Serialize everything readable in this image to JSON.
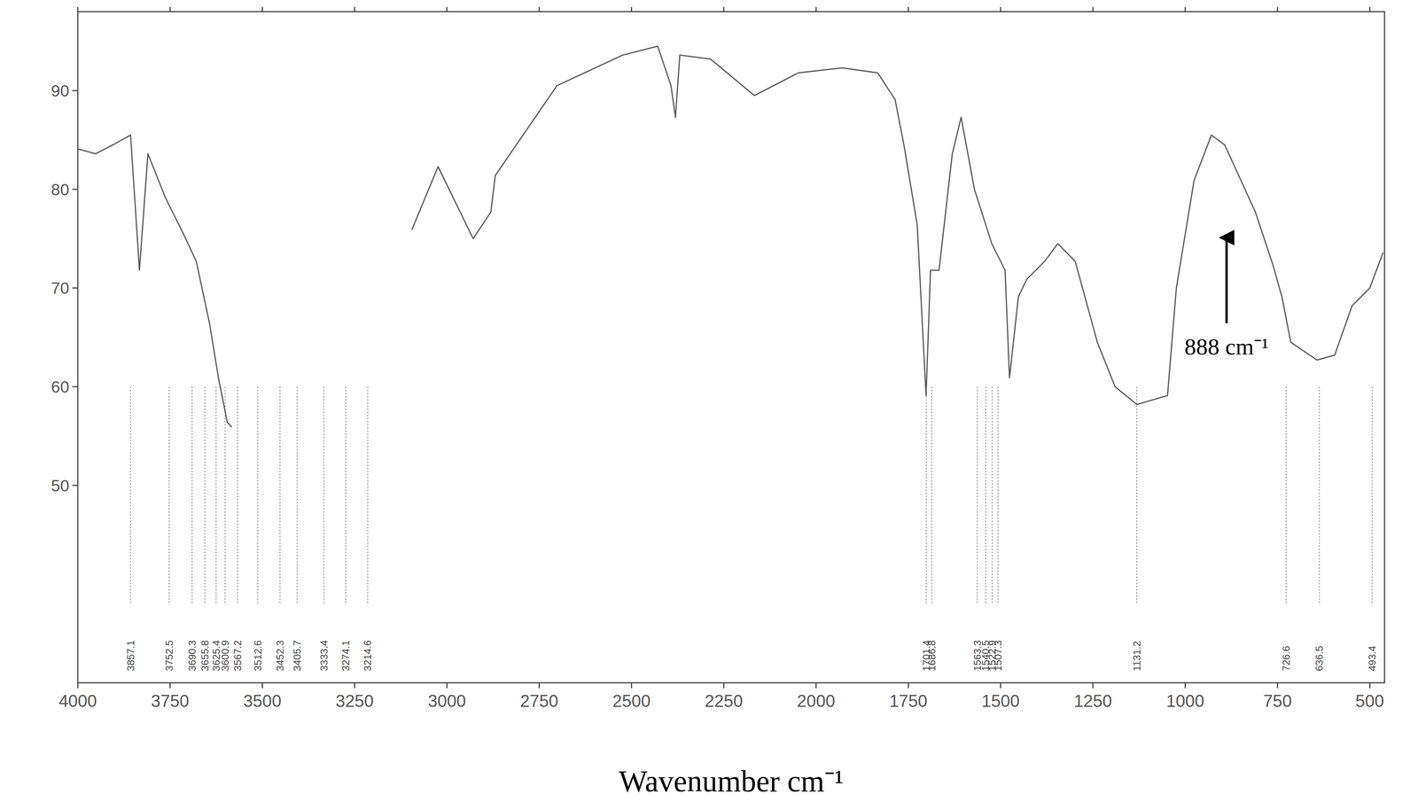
{
  "chart_data": {
    "type": "line",
    "x_label": "Wavenumber cm⁻¹",
    "x": [
      4000,
      3952,
      3905,
      3857,
      3833,
      3810,
      3762,
      3714,
      3679,
      3643,
      3619,
      3595,
      3583,
      3400,
      3095,
      3024,
      2929,
      2881,
      2869,
      2702,
      2524,
      2429,
      2393,
      2381,
      2369,
      2286,
      2167,
      2048,
      1929,
      1833,
      1786,
      1762,
      1726,
      1702,
      1690,
      1667,
      1631,
      1607,
      1571,
      1524,
      1488,
      1476,
      1452,
      1429,
      1381,
      1345,
      1298,
      1238,
      1190,
      1131,
      1048,
      1024,
      976,
      929,
      893,
      810,
      762,
      738,
      714,
      643,
      595,
      548,
      500,
      464
    ],
    "values": [
      84.1,
      83.6,
      84.5,
      85.5,
      71.8,
      83.6,
      79.1,
      75.5,
      72.7,
      66.4,
      60.9,
      56.4,
      55.9,
      null,
      75.9,
      82.3,
      75,
      77.7,
      81.4,
      90.5,
      93.6,
      94.5,
      90.5,
      87.3,
      93.6,
      93.2,
      89.5,
      91.8,
      92.3,
      91.8,
      89.1,
      84.5,
      76.4,
      59.1,
      71.8,
      71.8,
      83.6,
      87.3,
      80,
      74.5,
      71.8,
      60.9,
      69.1,
      70.9,
      72.7,
      74.5,
      72.7,
      64.5,
      60,
      58.2,
      59.1,
      70,
      80.9,
      85.5,
      84.5,
      77.7,
      72.3,
      69.1,
      64.5,
      62.7,
      63.2,
      68.2,
      70,
      73.6
    ],
    "color": "#555555",
    "xlim": [
      4000,
      460
    ],
    "xticks": [
      4000,
      3750,
      3500,
      3250,
      3000,
      2750,
      2500,
      2250,
      2000,
      1750,
      1500,
      1250,
      1000,
      750,
      500
    ],
    "ylim": [
      30,
      98
    ],
    "yticks": [
      50,
      60,
      70,
      80,
      90
    ],
    "grid": false,
    "peaks": [
      3857.1,
      3752.5,
      3690.3,
      3655.8,
      3625.4,
      3600.9,
      3567.2,
      3512.6,
      3452.3,
      3405.7,
      3333.4,
      3274.1,
      3214.6,
      1701.4,
      1686.8,
      1563.3,
      1540.5,
      1522.9,
      1507.3,
      1131.2,
      726.6,
      636.5,
      493.4
    ],
    "annotations": [
      {
        "text": "888 cm⁻¹",
        "x": 888,
        "y": 75.5
      }
    ]
  }
}
